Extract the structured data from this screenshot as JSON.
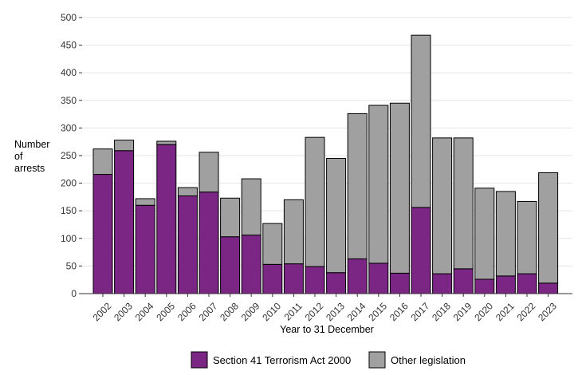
{
  "chart_data": {
    "type": "bar",
    "stacked": true,
    "title": "",
    "xlabel": "Year to 31 December",
    "ylabel_lines": [
      "Number",
      "of",
      "arrests"
    ],
    "ylim": [
      0,
      500
    ],
    "yticks": [
      0,
      50,
      100,
      150,
      200,
      250,
      300,
      350,
      400,
      450,
      500
    ],
    "grid": true,
    "legend_position": "bottom",
    "categories": [
      "2002",
      "2003",
      "2004",
      "2005",
      "2006",
      "2007",
      "2008",
      "2009",
      "2010",
      "2011",
      "2012",
      "2013",
      "2014",
      "2015",
      "2016",
      "2017",
      "2018",
      "2019",
      "2020",
      "2021",
      "2022",
      "2023"
    ],
    "series": [
      {
        "name": "Section 41 Terrorism Act 2000",
        "color": "#7b2585",
        "values": [
          216,
          259,
          160,
          270,
          177,
          184,
          103,
          106,
          53,
          54,
          49,
          38,
          63,
          55,
          37,
          156,
          36,
          45,
          26,
          32,
          36,
          19
        ]
      },
      {
        "name": "Other legislation",
        "color": "#a0a0a0",
        "values": [
          46,
          19,
          12,
          6,
          15,
          72,
          70,
          102,
          74,
          116,
          234,
          207,
          263,
          286,
          308,
          312,
          246,
          237,
          165,
          153,
          131,
          200
        ]
      }
    ]
  }
}
